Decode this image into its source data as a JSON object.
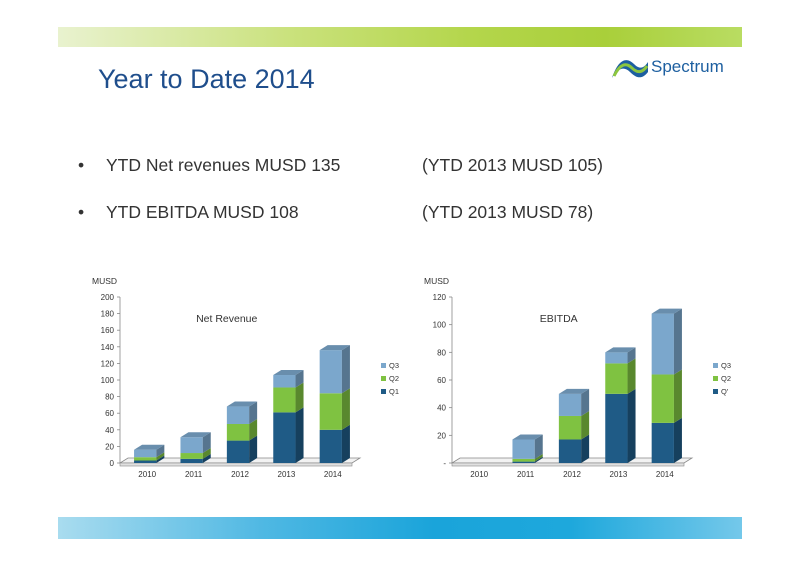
{
  "slide": {
    "title": "Year to Date 2014",
    "logo_text": "Spectrum",
    "bullets": [
      {
        "marker": "•",
        "text": "YTD Net revenues MUSD 135",
        "comparison": "(YTD 2013   MUSD 105)"
      },
      {
        "marker": "•",
        "text": "YTD EBITDA MUSD 108",
        "comparison": "(YTD 2013   MUSD 78)"
      }
    ]
  },
  "colors": {
    "Q1": "#1f5b86",
    "Q2": "#7fc241",
    "Q3": "#7ba7cc",
    "title": "#1f4e8c"
  },
  "chart_data": [
    {
      "type": "bar",
      "stacked": true,
      "title": "Net Revenue",
      "ylabel": "MUSD",
      "categories": [
        "2010",
        "2011",
        "2012",
        "2013",
        "2014"
      ],
      "ylim": [
        0,
        200
      ],
      "yticks": [
        "0",
        "20",
        "40",
        "60",
        "80",
        "100",
        "120",
        "140",
        "160",
        "180",
        "200"
      ],
      "series": [
        {
          "name": "Q1",
          "values": [
            3,
            5,
            27,
            61,
            40
          ]
        },
        {
          "name": "Q2",
          "values": [
            4,
            7,
            20,
            30,
            44
          ]
        },
        {
          "name": "Q3",
          "values": [
            9,
            19,
            21,
            15,
            52
          ]
        }
      ],
      "legend": "right",
      "grid": false
    },
    {
      "type": "bar",
      "stacked": true,
      "title": "EBITDA",
      "ylabel": "MUSD",
      "categories": [
        "2010",
        "2011",
        "2012",
        "2013",
        "2014"
      ],
      "ylim": [
        0,
        120
      ],
      "yticks": [
        "-",
        "20",
        "40",
        "60",
        "80",
        "100",
        "120"
      ],
      "series": [
        {
          "name": "Q1",
          "values": [
            0,
            1,
            17,
            50,
            29
          ]
        },
        {
          "name": "Q2",
          "values": [
            0,
            2,
            17,
            22,
            35
          ]
        },
        {
          "name": "Q3",
          "values": [
            0,
            14,
            16,
            8,
            44
          ]
        }
      ],
      "legend": "right",
      "legend_labels": [
        "Q3",
        "Q2",
        "Q'"
      ],
      "grid": false
    }
  ]
}
